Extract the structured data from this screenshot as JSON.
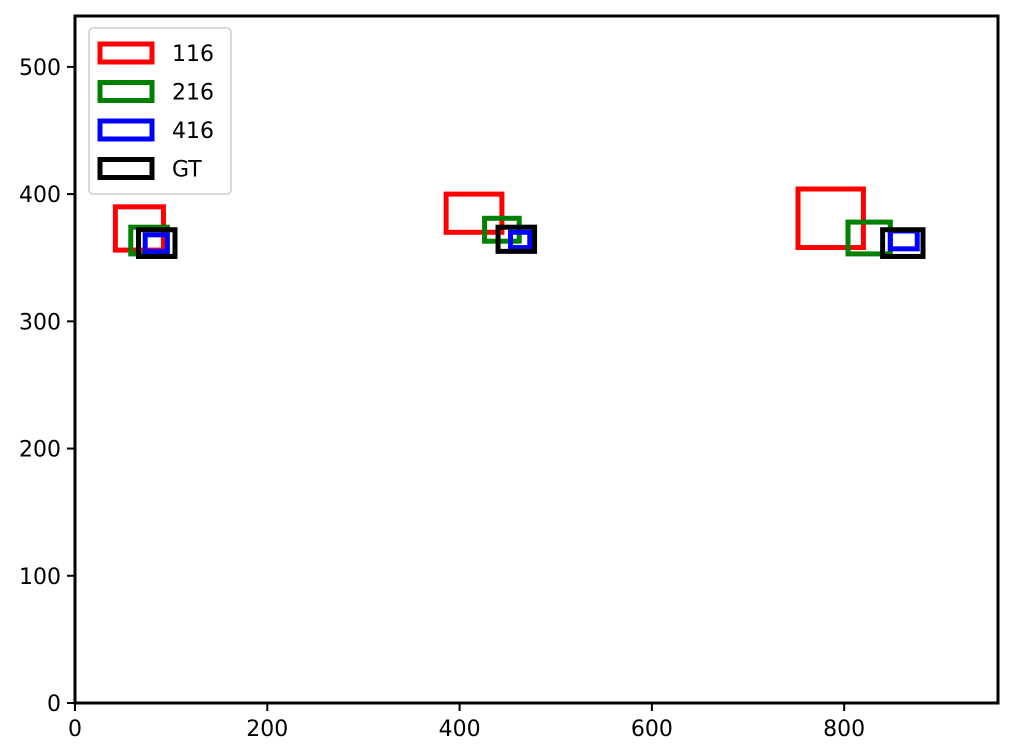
{
  "chart_data": {
    "type": "scatter",
    "title": "",
    "xlabel": "",
    "ylabel": "",
    "xlim": [
      0,
      960
    ],
    "ylim": [
      0,
      540
    ],
    "xticks": [
      0,
      200,
      400,
      600,
      800
    ],
    "yticks": [
      0,
      100,
      200,
      300,
      400,
      500
    ],
    "xtick_labels": [
      "0",
      "200",
      "400",
      "600",
      "800"
    ],
    "ytick_labels": [
      "0",
      "100",
      "200",
      "300",
      "400",
      "500"
    ],
    "grid": false,
    "legend_position": "top-left",
    "series": [
      {
        "name": "116",
        "color": "#ff0000",
        "boxes": [
          {
            "x0": 42,
            "y0": 356,
            "x1": 92,
            "y1": 390
          },
          {
            "x0": 386,
            "y0": 370,
            "x1": 444,
            "y1": 400
          },
          {
            "x0": 752,
            "y0": 358,
            "x1": 820,
            "y1": 404
          }
        ]
      },
      {
        "name": "216",
        "color": "#008000",
        "boxes": [
          {
            "x0": 58,
            "y0": 353,
            "x1": 96,
            "y1": 374
          },
          {
            "x0": 426,
            "y0": 363,
            "x1": 462,
            "y1": 381
          },
          {
            "x0": 804,
            "y0": 353,
            "x1": 848,
            "y1": 378
          }
        ]
      },
      {
        "name": "416",
        "color": "#0000ff",
        "boxes": [
          {
            "x0": 73,
            "y0": 355,
            "x1": 96,
            "y1": 368
          },
          {
            "x0": 453,
            "y0": 358,
            "x1": 473,
            "y1": 370
          },
          {
            "x0": 848,
            "y0": 357,
            "x1": 876,
            "y1": 371
          }
        ]
      },
      {
        "name": "GT",
        "color": "#000000",
        "boxes": [
          {
            "x0": 66,
            "y0": 351,
            "x1": 104,
            "y1": 372
          },
          {
            "x0": 440,
            "y0": 355,
            "x1": 478,
            "y1": 374
          },
          {
            "x0": 840,
            "y0": 351,
            "x1": 882,
            "y1": 372
          }
        ]
      }
    ]
  }
}
